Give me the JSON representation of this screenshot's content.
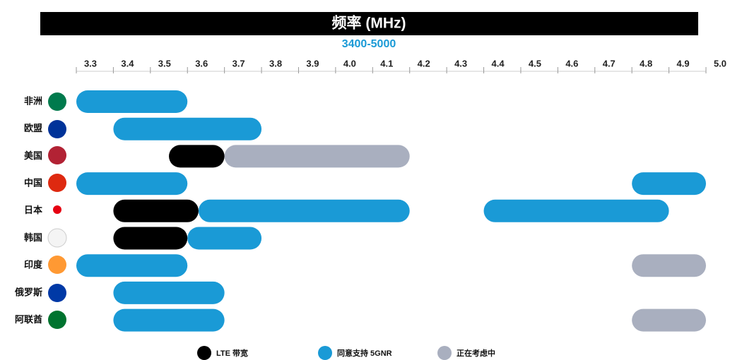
{
  "chart_data": {
    "type": "range-bar",
    "title": "频率 (MHz)",
    "subtitle": "3400-5000",
    "categories": [
      "非洲",
      "欧盟",
      "美国",
      "中国",
      "日本",
      "韩国",
      "印度",
      "俄罗斯",
      "阿联酋"
    ],
    "xlim": [
      3.3,
      5.0
    ],
    "xticks": [
      3.3,
      3.4,
      3.5,
      3.6,
      3.7,
      3.8,
      3.9,
      {
        "value": 4.0,
        "label": "4.0"
      },
      4.1,
      4.2,
      4.3,
      4.4,
      4.5,
      4.6,
      4.7,
      4.8,
      4.9,
      {
        "value": 5.0,
        "label": "5.0"
      }
    ],
    "series": [
      {
        "name": "LTE 带宽",
        "color": "#000000",
        "segments": [
          [
            2,
            3.55,
            3.7
          ],
          [
            4,
            3.4,
            3.63
          ],
          [
            5,
            3.4,
            3.6
          ]
        ]
      },
      {
        "name": "同意支持 5GNR",
        "color": "#1a9ad6",
        "segments": [
          [
            0,
            3.3,
            3.6
          ],
          [
            1,
            3.4,
            3.8
          ],
          [
            3,
            3.3,
            3.6
          ],
          [
            3,
            4.8,
            5.0
          ],
          [
            4,
            3.63,
            4.2
          ],
          [
            4,
            4.4,
            4.9
          ],
          [
            5,
            3.6,
            3.8
          ],
          [
            6,
            3.3,
            3.6
          ],
          [
            7,
            3.4,
            3.7
          ],
          [
            8,
            3.4,
            3.7
          ]
        ]
      },
      {
        "name": "正在考虑中",
        "color": "#a9afbf",
        "segments": [
          [
            2,
            3.7,
            4.2
          ],
          [
            6,
            4.8,
            5.0
          ],
          [
            8,
            4.8,
            5.0
          ]
        ]
      }
    ]
  }
}
